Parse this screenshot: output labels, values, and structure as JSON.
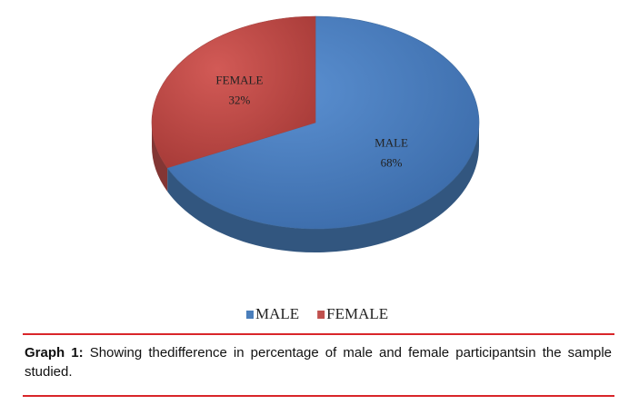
{
  "chart_data": {
    "type": "pie",
    "categories": [
      "MALE",
      "FEMALE"
    ],
    "values": [
      68,
      32
    ],
    "value_labels": [
      "68%",
      "32%"
    ],
    "colors": [
      "#4a7ebb",
      "#c0504d"
    ],
    "legend": "bottom"
  },
  "caption": {
    "label": "Graph 1:",
    "text": "Showing thedifference in percentage of male and female participantsin the sample studied."
  }
}
